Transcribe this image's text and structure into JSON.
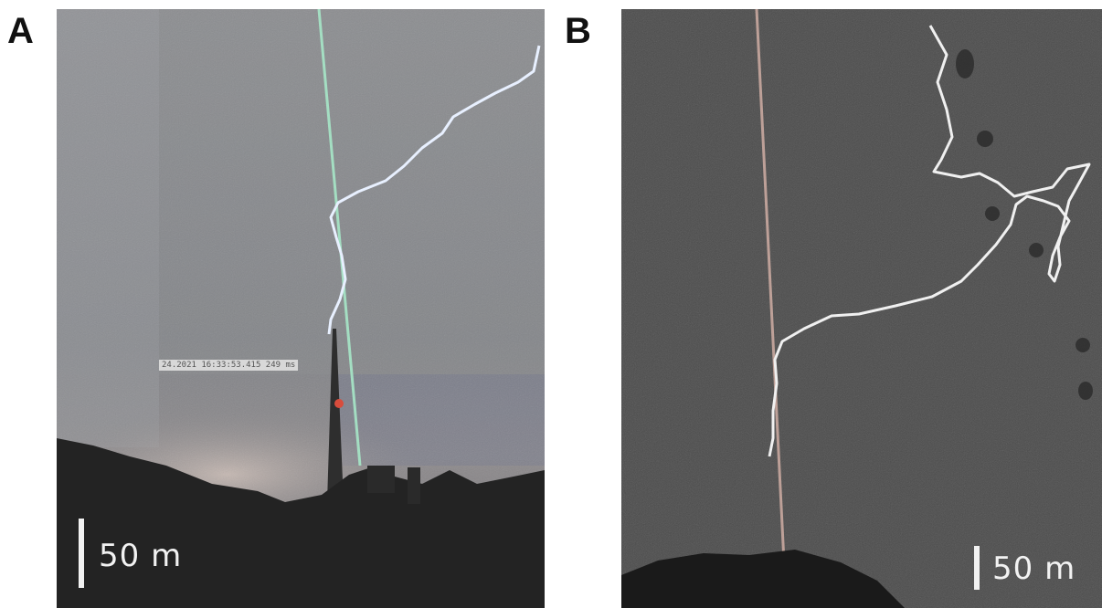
{
  "panels": [
    {
      "letter": "A",
      "scale_label": "50 m",
      "timestamp": "24.2021 16:33:53.415 249 ms",
      "colors": {
        "sky": "#8a8c90",
        "lightning": "#e8f0ff",
        "laser": "#a7e7c8",
        "ground": "#232323"
      }
    },
    {
      "letter": "B",
      "scale_label": "50 m",
      "colors": {
        "sky": "#4a4a4a",
        "lightning": "#f0f0f0",
        "laser": "#c9a9a0",
        "ground": "#1a1a1a"
      }
    }
  ]
}
